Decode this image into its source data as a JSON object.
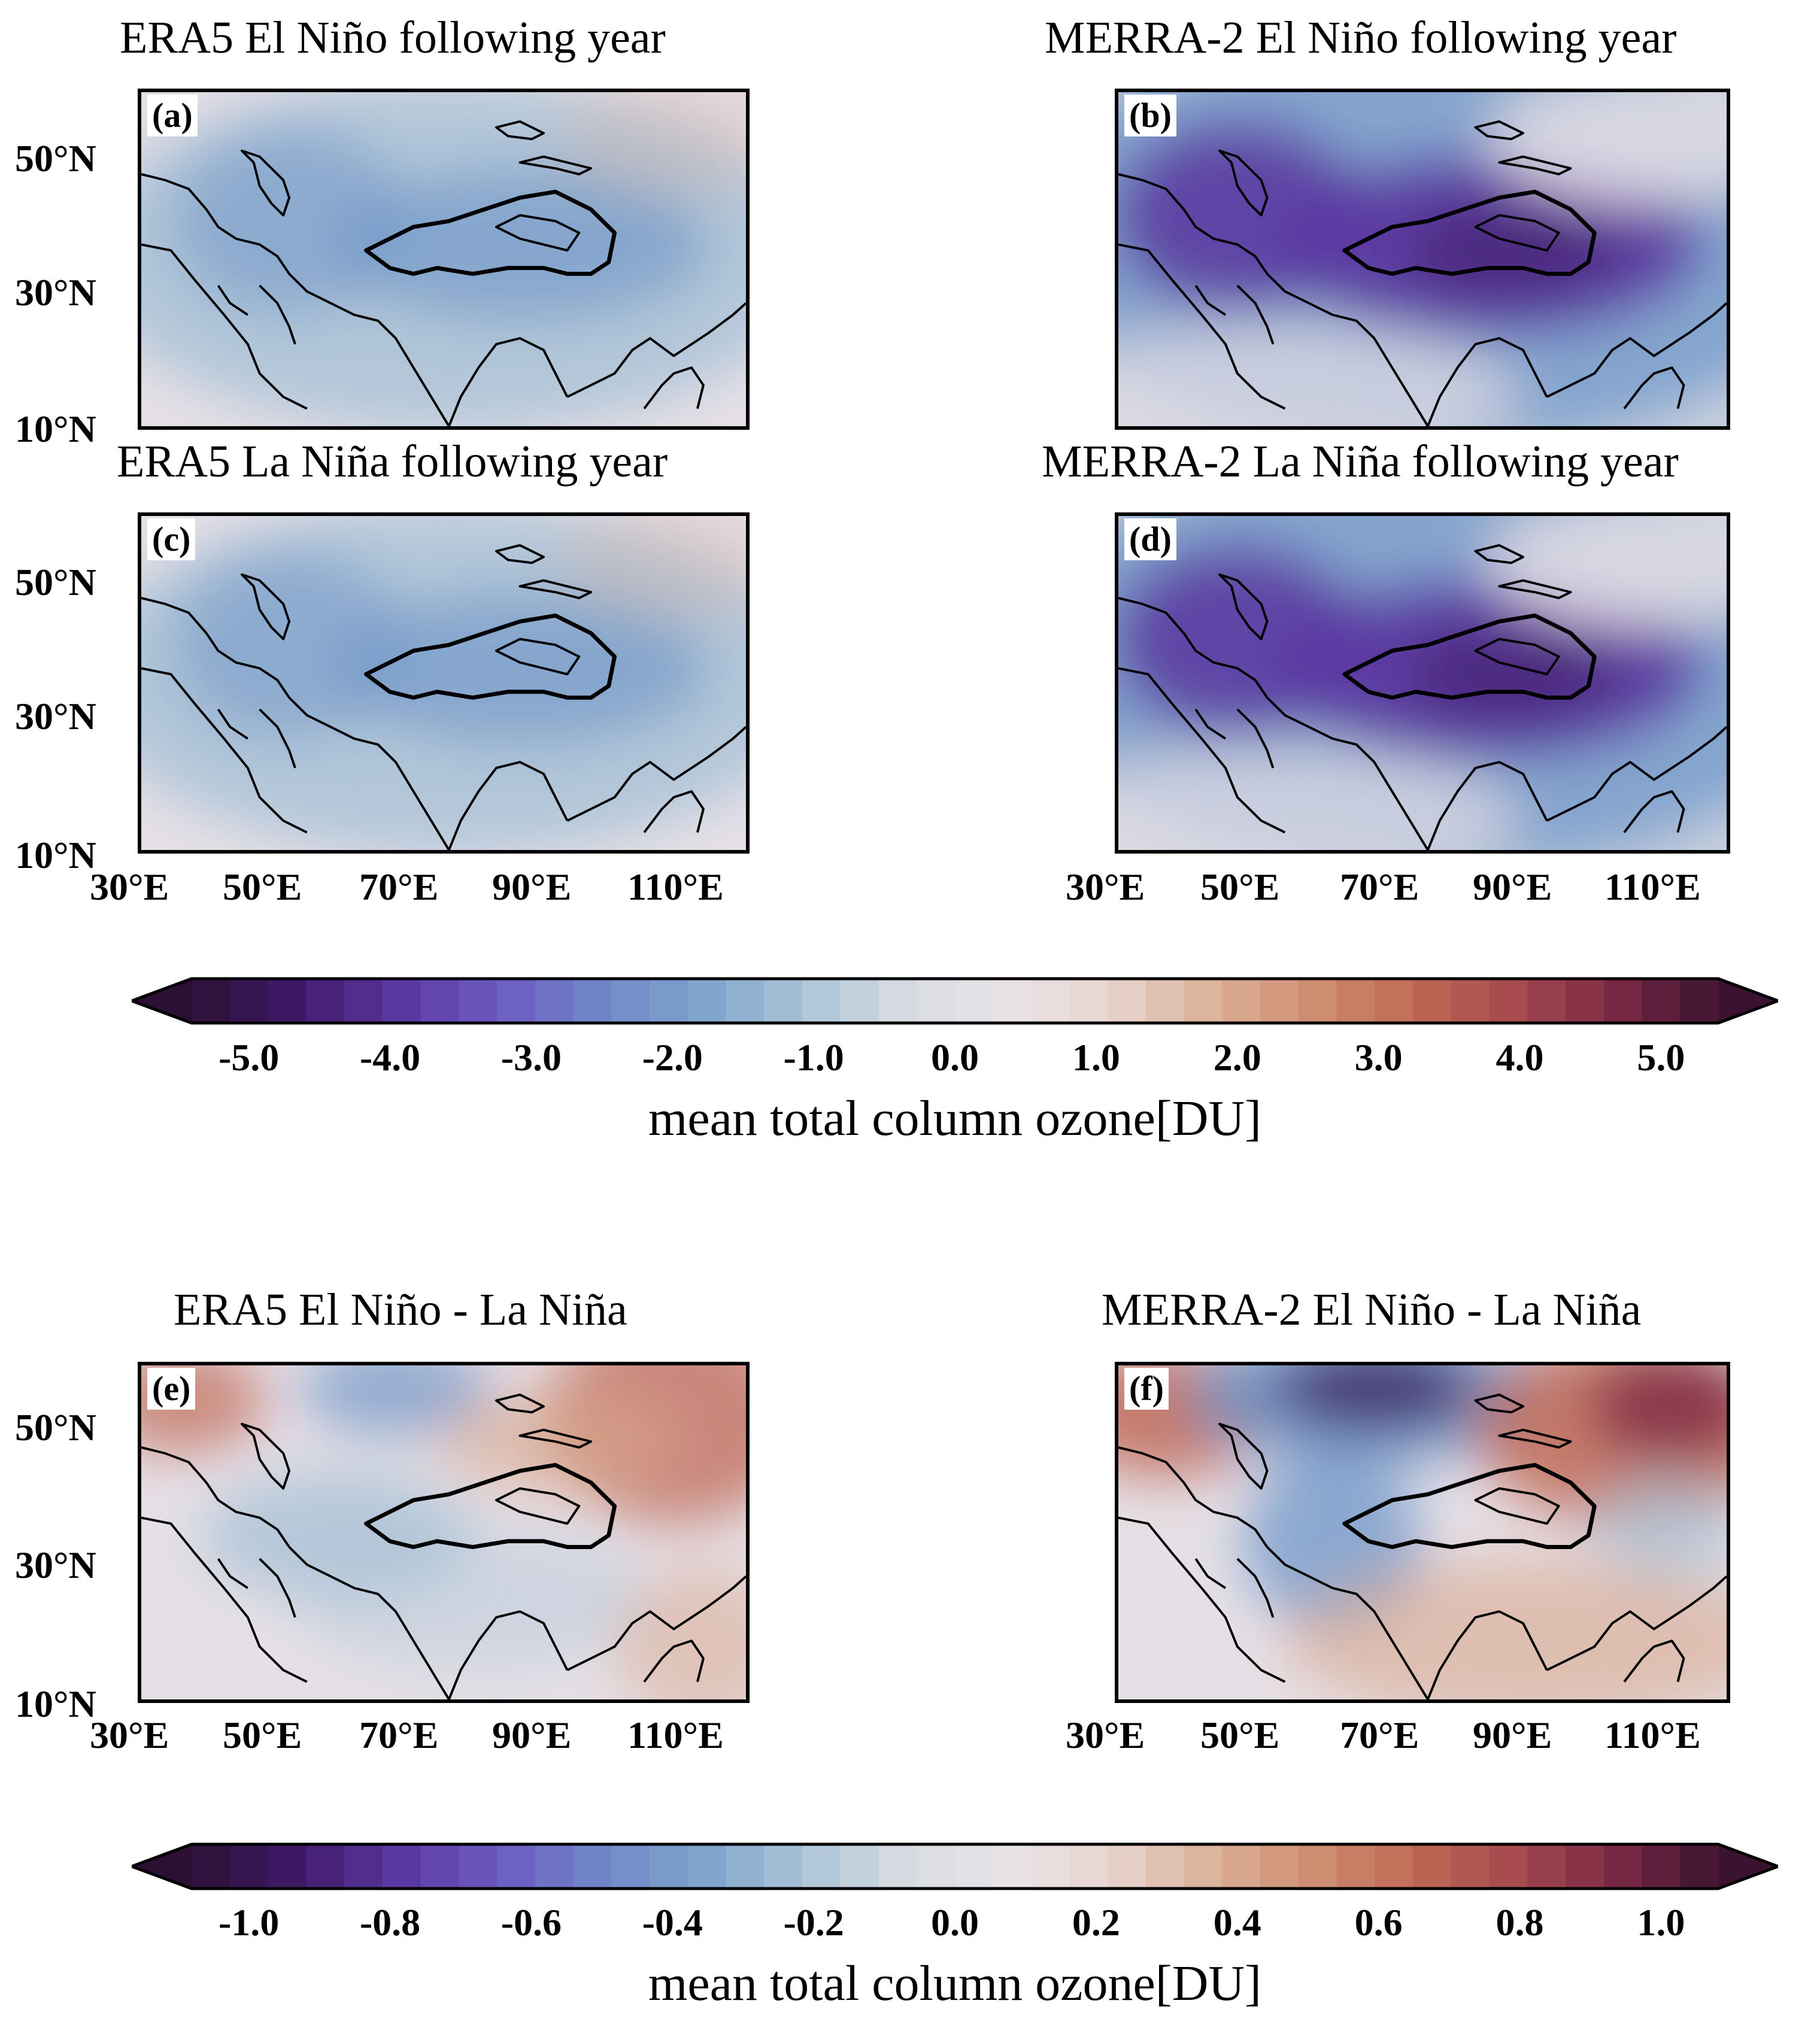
{
  "figure": {
    "panels": [
      {
        "id": "a",
        "label": "(a)",
        "title": "ERA5 El Niño following year",
        "style": "era5"
      },
      {
        "id": "b",
        "label": "(b)",
        "title": "MERRA-2 El Niño following year",
        "style": "merra"
      },
      {
        "id": "c",
        "label": "(c)",
        "title": "ERA5 La Niña following year",
        "style": "era5"
      },
      {
        "id": "d",
        "label": "(d)",
        "title": "MERRA-2 La Niña following year",
        "style": "merra"
      },
      {
        "id": "e",
        "label": "(e)",
        "title": "ERA5 El Niño - La Niña",
        "style": "era5diff"
      },
      {
        "id": "f",
        "label": "(f)",
        "title": "MERRA-2 El Niño - La Niña",
        "style": "merradiff"
      }
    ],
    "lat_ticks": [
      "50°N",
      "30°N",
      "10°N"
    ],
    "lon_ticks": [
      "30°E",
      "50°E",
      "70°E",
      "90°E",
      "110°E"
    ],
    "colorbars": [
      {
        "id": "top",
        "ticks": [
          "-5.0",
          "-4.0",
          "-3.0",
          "-2.0",
          "-1.0",
          "0.0",
          "1.0",
          "2.0",
          "3.0",
          "4.0",
          "5.0"
        ],
        "label": "mean total column ozone[DU]"
      },
      {
        "id": "bottom",
        "ticks": [
          "-1.0",
          "-0.8",
          "-0.6",
          "-0.4",
          "-0.2",
          "0.0",
          "0.2",
          "0.4",
          "0.6",
          "0.8",
          "1.0"
        ],
        "label": "mean total column ozone[DU]"
      }
    ],
    "colors": {
      "neutral": "#e6e0e6",
      "blue_light": "#a9c2d6",
      "blue_mid": "#6e95c8",
      "purple": "#5a35a0",
      "purple_dark": "#3a1a5c",
      "red_light": "#d9a88e",
      "red_mid": "#c06a55",
      "red_dark": "#7a2845"
    }
  }
}
